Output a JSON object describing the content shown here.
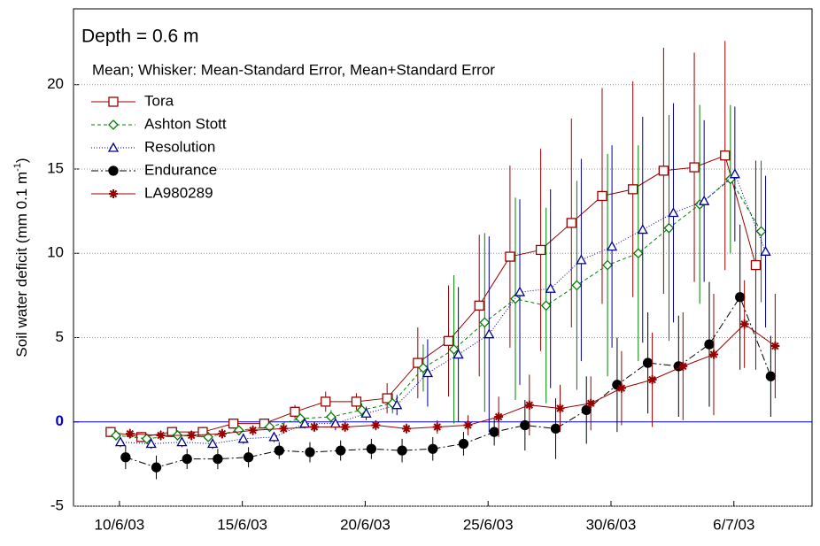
{
  "chart_data": {
    "type": "line",
    "title": "Depth = 0.6 m",
    "subtitle": "Mean;  Whisker: Mean-Standard Error, Mean+Standard Error",
    "ylabel": "Soil water deficit (mm  0.1 m",
    "ylabel_sup": "-1",
    "ylabel_end": ")",
    "xlim": [
      8.13,
      38.18
    ],
    "xticks": [
      {
        "value": 10,
        "label": "10/6/03"
      },
      {
        "value": 15,
        "label": "15/6/03"
      },
      {
        "value": 20,
        "label": "20/6/03"
      },
      {
        "value": 25,
        "label": "25/6/03"
      },
      {
        "value": 30,
        "label": "30/6/03"
      },
      {
        "value": 35,
        "label": "6/7/03"
      }
    ],
    "ylim": [
      -5,
      24.5
    ],
    "yticks": [
      -5,
      0,
      5,
      10,
      15,
      20
    ],
    "grid": true,
    "zero_line_color": "#0000cc",
    "legend": "upper-left",
    "series": [
      {
        "name": "Tora",
        "color": "#990000",
        "marker": "square",
        "dash": "none",
        "x": [
          9.64,
          10.89,
          12.14,
          13.39,
          14.64,
          15.89,
          17.14,
          18.39,
          19.64,
          20.89,
          22.14,
          23.39,
          24.64,
          25.89,
          27.14,
          28.39,
          29.64,
          30.89,
          32.14,
          33.39,
          34.64,
          35.89
        ],
        "values": [
          -0.6,
          -0.9,
          -0.6,
          -0.6,
          -0.1,
          -0.1,
          0.6,
          1.2,
          1.2,
          1.4,
          3.5,
          4.8,
          6.9,
          9.8,
          10.2,
          11.8,
          13.4,
          13.8,
          14.9,
          15.1,
          15.8,
          9.3
        ],
        "errors": [
          0.3,
          0.3,
          0.3,
          0.3,
          0.3,
          0.3,
          0.4,
          0.6,
          0.5,
          0.9,
          2.1,
          3.3,
          4.2,
          5.4,
          6.0,
          6.2,
          6.4,
          6.4,
          7.3,
          6.8,
          6.8,
          6.2
        ]
      },
      {
        "name": "Ashton Stott",
        "color": "#008000",
        "marker": "diamond",
        "dash": "4 3",
        "x": [
          9.86,
          11.11,
          12.36,
          13.61,
          14.86,
          16.11,
          17.36,
          18.61,
          19.86,
          21.11,
          22.36,
          23.61,
          24.86,
          26.11,
          27.36,
          28.61,
          29.86,
          31.11,
          32.36,
          33.61,
          34.86,
          36.11
        ],
        "values": [
          -0.8,
          -1.0,
          -0.8,
          -0.9,
          -0.5,
          -0.3,
          0.2,
          0.3,
          0.7,
          1.1,
          3.2,
          4.3,
          5.9,
          7.3,
          6.9,
          8.1,
          9.3,
          10.0,
          11.5,
          12.9,
          14.4,
          11.3
        ],
        "errors": [
          0.3,
          0.3,
          0.3,
          0.3,
          0.3,
          0.3,
          0.3,
          0.4,
          0.4,
          0.6,
          1.4,
          4.4,
          5.3,
          6.0,
          5.8,
          6.2,
          6.6,
          6.4,
          6.7,
          5.9,
          4.4,
          4.2
        ]
      },
      {
        "name": "Resolution",
        "color": "#000099",
        "marker": "triangle",
        "dash": "1 2",
        "x": [
          10.04,
          11.29,
          12.54,
          13.79,
          15.04,
          16.29,
          17.54,
          18.79,
          20.04,
          21.29,
          22.54,
          23.79,
          25.04,
          26.29,
          27.54,
          28.79,
          30.04,
          31.29,
          32.54,
          33.79,
          35.04,
          36.29
        ],
        "values": [
          -1.2,
          -1.3,
          -1.2,
          -1.3,
          -1.0,
          -0.9,
          -0.1,
          -0.1,
          0.5,
          1.0,
          2.9,
          4.0,
          5.2,
          7.7,
          7.9,
          9.6,
          10.4,
          11.4,
          12.4,
          13.1,
          14.7,
          10.1
        ],
        "errors": [
          0.3,
          0.3,
          0.3,
          0.3,
          0.3,
          0.3,
          0.3,
          0.4,
          0.4,
          0.6,
          2.0,
          4.0,
          5.8,
          5.5,
          5.9,
          6.0,
          6.0,
          6.7,
          6.5,
          4.8,
          4.0,
          4.5
        ]
      },
      {
        "name": "Endurance",
        "color": "#000000",
        "marker": "circle",
        "dash": "8 3 2 3",
        "x": [
          10.25,
          11.5,
          12.75,
          14,
          15.25,
          16.5,
          17.75,
          19,
          20.25,
          21.5,
          22.75,
          24,
          25.25,
          26.5,
          27.75,
          29,
          30.25,
          31.5,
          32.75,
          34,
          35.25,
          36.5
        ],
        "values": [
          -2.1,
          -2.7,
          -2.2,
          -2.2,
          -2.1,
          -1.7,
          -1.8,
          -1.7,
          -1.6,
          -1.7,
          -1.6,
          -1.3,
          -0.6,
          -0.2,
          -0.4,
          0.7,
          2.2,
          3.5,
          3.3,
          4.6,
          7.4,
          2.7
        ],
        "errors": [
          0.7,
          0.7,
          0.6,
          0.6,
          0.6,
          0.5,
          0.6,
          0.6,
          0.6,
          0.7,
          0.7,
          0.7,
          0.8,
          1.5,
          1.8,
          2.0,
          2.8,
          3.0,
          3.0,
          3.7,
          4.3,
          2.4
        ]
      },
      {
        "name": "LA980289",
        "color": "#990000",
        "marker": "star",
        "dash": "none",
        "x": [
          10.43,
          11.68,
          12.93,
          14.18,
          15.43,
          16.68,
          17.93,
          19.18,
          20.43,
          21.68,
          22.93,
          24.18,
          25.43,
          26.68,
          27.93,
          29.18,
          30.43,
          31.68,
          32.93,
          34.18,
          35.43,
          36.68
        ],
        "values": [
          -0.7,
          -0.8,
          -0.8,
          -0.7,
          -0.5,
          -0.4,
          -0.3,
          -0.3,
          -0.2,
          -0.4,
          -0.3,
          -0.2,
          0.3,
          1.0,
          0.8,
          1.1,
          2.0,
          2.5,
          3.3,
          4.0,
          5.8,
          4.5
        ],
        "errors": [
          0.3,
          0.3,
          0.3,
          0.3,
          0.3,
          0.3,
          0.3,
          0.3,
          0.3,
          0.3,
          0.4,
          0.6,
          1.2,
          1.8,
          1.4,
          1.6,
          2.2,
          2.8,
          3.2,
          3.6,
          2.6,
          3.1
        ]
      }
    ]
  }
}
